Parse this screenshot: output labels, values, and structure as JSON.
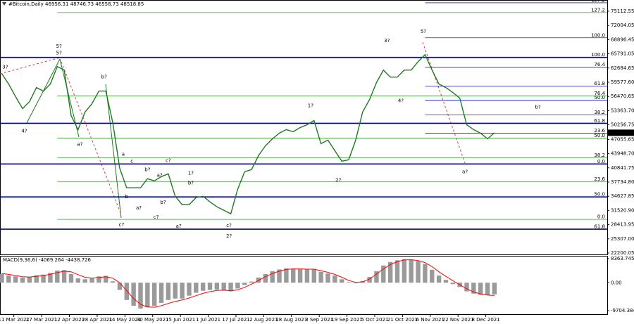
{
  "chart_data": [
    {
      "type": "line",
      "title": "#Bitcoin,Daily  46956.31 48746.73 46558.73 48518.85",
      "color": "#1f7a1f",
      "x": [
        "2021-03-04",
        "2021-03-08",
        "2021-03-12",
        "2021-03-16",
        "2021-03-20",
        "2021-03-24",
        "2021-03-28",
        "2021-04-01",
        "2021-04-05",
        "2021-04-09",
        "2021-04-13",
        "2021-04-17",
        "2021-04-21",
        "2021-04-25",
        "2021-04-29",
        "2021-05-03",
        "2021-05-07",
        "2021-05-11",
        "2021-05-15",
        "2021-05-19",
        "2021-05-23",
        "2021-05-27",
        "2021-05-31",
        "2021-06-04",
        "2021-06-08",
        "2021-06-12",
        "2021-06-16",
        "2021-06-20",
        "2021-06-24",
        "2021-06-28",
        "2021-07-02",
        "2021-07-06",
        "2021-07-10",
        "2021-07-14",
        "2021-07-18",
        "2021-07-22",
        "2021-07-26",
        "2021-07-30",
        "2021-08-03",
        "2021-08-07",
        "2021-08-11",
        "2021-08-15",
        "2021-08-19",
        "2021-08-23",
        "2021-08-27",
        "2021-08-31",
        "2021-09-04",
        "2021-09-08",
        "2021-09-12",
        "2021-09-16",
        "2021-09-20",
        "2021-09-24",
        "2021-09-28",
        "2021-10-02",
        "2021-10-06",
        "2021-10-10",
        "2021-10-14",
        "2021-10-18",
        "2021-10-22",
        "2021-10-26",
        "2021-10-30",
        "2021-11-03",
        "2021-11-07",
        "2021-11-11",
        "2021-11-15",
        "2021-11-19",
        "2021-11-23",
        "2021-11-27",
        "2021-12-01",
        "2021-12-05",
        "2021-12-09",
        "2021-12-13"
      ],
      "values": [
        61470,
        59170,
        56410,
        53800,
        55330,
        58400,
        57640,
        59170,
        63000,
        62240,
        52270,
        49200,
        53030,
        54870,
        57640,
        57640,
        50730,
        40760,
        36470,
        36470,
        36470,
        38460,
        38000,
        38920,
        39530,
        34630,
        32780,
        32780,
        34320,
        34630,
        33400,
        32320,
        31560,
        30790,
        36160,
        39990,
        40450,
        43520,
        45670,
        47200,
        48430,
        49200,
        48740,
        49660,
        50270,
        51190,
        46130,
        46900,
        44600,
        42300,
        42600,
        46900,
        53030,
        55790,
        59480,
        62240,
        60700,
        60700,
        62240,
        62240,
        64080,
        65610,
        62240,
        59170,
        58400,
        57330,
        56100,
        50270,
        49200,
        48430,
        47200,
        48518.85
      ],
      "xlim": [
        "2021-03-03",
        "2022-02-16"
      ],
      "ylim": [
        21740,
        77566
      ],
      "yticks": [
        75112.55,
        72004.05,
        68896.45,
        65791.05,
        62684.65,
        {
          "value": 59577.6,
          "label": "59577.60"
        },
        56470.65,
        {
          "value": 53363.7,
          "label": "53363.70"
        },
        50256.75,
        47055.65,
        {
          "value": 43948.7,
          "label": "43948.70"
        },
        40841.75,
        {
          "value": 37734.8,
          "label": "37734.80"
        },
        34627.85,
        {
          "value": 31520.9,
          "label": "31520.90"
        },
        28413.95,
        {
          "value": 25307,
          "label": "25307.00"
        },
        22200.05
      ],
      "levels": [
        {
          "value": 76964,
          "label": "127.2",
          "color": "#1c1ccc",
          "from": "2021-11-03"
        },
        {
          "value": 74816,
          "label": "127.2",
          "color": "#3c9a3c",
          "from": "2021-04-05"
        },
        {
          "value": 69294,
          "label": "100.0",
          "color": "#1c1ccc",
          "from": "2021-11-03"
        },
        {
          "value": 64999,
          "label": "100.0",
          "color": "#0000b0",
          "from": "2021-03-03"
        },
        {
          "value": 62851,
          "label": "76.4",
          "color": "#1c1ccc",
          "from": "2021-11-03"
        },
        {
          "value": 58709,
          "label": "61.8",
          "color": "#1c1ccc",
          "from": "2021-11-03"
        },
        {
          "value": 56562,
          "label": "76.4",
          "color": "#3c9a3c",
          "from": "2021-04-05"
        },
        {
          "value": 55641,
          "label": "50.0",
          "color": "#1c1ccc",
          "from": "2021-11-03"
        },
        {
          "value": 52420,
          "label": "38.2",
          "color": "#1c1ccc",
          "from": "2021-11-03"
        },
        {
          "value": 50579,
          "label": "61.8",
          "color": "#0000b0",
          "from": "2021-03-03"
        },
        {
          "value": 48431,
          "label": "23.6",
          "color": "#1c1ccc",
          "from": "2021-11-03"
        },
        {
          "value": 47358,
          "label": "50.0",
          "color": "#3c9a3c",
          "from": "2021-04-05"
        },
        {
          "value": 43062,
          "label": "38.2",
          "color": "#3c9a3c",
          "from": "2021-04-05"
        },
        {
          "value": 41682,
          "label": "0.0",
          "color": "#0000b0",
          "from": "2021-03-03"
        },
        {
          "value": 37847,
          "label": "23.6",
          "color": "#3c9a3c",
          "from": "2021-04-05"
        },
        {
          "value": 34472,
          "label": "50.0",
          "color": "#0000b0",
          "from": "2021-03-03"
        },
        {
          "value": 29563,
          "label": "0.0",
          "color": "#3c9a3c",
          "from": "2021-04-05"
        },
        {
          "value": 27416,
          "label": "61.8",
          "color": "#0000b0",
          "from": "2021-03-03"
        }
      ],
      "annotations": [
        {
          "text": "3?",
          "x": "2021-03-06",
          "y": 62850,
          "color": "#2e8b2e"
        },
        {
          "text": "4?",
          "x": "2021-03-17",
          "y": 48890,
          "color": "#2e8b2e"
        },
        {
          "text": "5?",
          "x": "2021-04-06",
          "y": 67450,
          "color": "#0000ff"
        },
        {
          "text": "5?",
          "x": "2021-04-06",
          "y": 65920,
          "color": "#2e8b2e"
        },
        {
          "text": "b?",
          "x": "2021-05-02",
          "y": 60700,
          "color": "#2e8b2e"
        },
        {
          "text": "a?",
          "x": "2021-04-18",
          "y": 45980,
          "color": "#2e8b2e"
        },
        {
          "text": "a",
          "x": "2021-05-13",
          "y": 43830,
          "color": "#2e8b2e"
        },
        {
          "text": "c",
          "x": "2021-05-18",
          "y": 42300,
          "color": "#2e8b2e"
        },
        {
          "text": "b?",
          "x": "2021-05-27",
          "y": 40450,
          "color": "#2e8b2e"
        },
        {
          "text": "a?",
          "x": "2021-06-03",
          "y": 39230,
          "color": "#2e8b2e"
        },
        {
          "text": "c?",
          "x": "2021-06-08",
          "y": 42450,
          "color": "#2e8b2e"
        },
        {
          "text": "b",
          "x": "2021-05-15",
          "y": 34470,
          "color": "#2e8b2e"
        },
        {
          "text": "a?",
          "x": "2021-05-22",
          "y": 32020,
          "color": "#2e8b2e"
        },
        {
          "text": "b?",
          "x": "2021-06-05",
          "y": 33240,
          "color": "#2e8b2e"
        },
        {
          "text": "c?",
          "x": "2021-05-12",
          "y": 28340,
          "color": "#2e8b2e"
        },
        {
          "text": "c?",
          "x": "2021-06-01",
          "y": 30020,
          "color": "#2e8b2e"
        },
        {
          "text": "a?",
          "x": "2021-06-14",
          "y": 28030,
          "color": "#2e8b2e"
        },
        {
          "text": "1?",
          "x": "2021-06-21",
          "y": 39690,
          "color": "#2e8b2e"
        },
        {
          "text": "b?",
          "x": "2021-06-21",
          "y": 37540,
          "color": "#2e8b2e"
        },
        {
          "text": "c?",
          "x": "2021-07-13",
          "y": 28180,
          "color": "#2e8b2e"
        },
        {
          "text": "2?",
          "x": "2021-07-13",
          "y": 25880,
          "color": "#2e8b2e"
        },
        {
          "text": "1?",
          "x": "2021-08-29",
          "y": 54410,
          "color": "#2e8b2e"
        },
        {
          "text": "2?",
          "x": "2021-09-14",
          "y": 38150,
          "color": "#2e8b2e"
        },
        {
          "text": "3?",
          "x": "2021-10-12",
          "y": 68680,
          "color": "#2e8b2e"
        },
        {
          "text": "4?",
          "x": "2021-10-20",
          "y": 55490,
          "color": "#2e8b2e"
        },
        {
          "text": "5?",
          "x": "2021-11-02",
          "y": 70670,
          "color": "#2e8b2e"
        },
        {
          "text": "a?",
          "x": "2021-11-26",
          "y": 40000,
          "color": "#2e8b2e"
        },
        {
          "text": "b?",
          "x": "2022-01-07",
          "y": 54110,
          "color": "#2e8b2e"
        }
      ]
    },
    {
      "type": "macd",
      "title": "MACD(9,36,6) -4069.264 -4438.726",
      "color": "#9a9a9a",
      "signal_color": "#ff0000",
      "x": [
        "2021-03-04",
        "2021-03-08",
        "2021-03-12",
        "2021-03-16",
        "2021-03-20",
        "2021-03-24",
        "2021-03-28",
        "2021-04-01",
        "2021-04-05",
        "2021-04-09",
        "2021-04-13",
        "2021-04-17",
        "2021-04-21",
        "2021-04-25",
        "2021-04-29",
        "2021-05-03",
        "2021-05-07",
        "2021-05-11",
        "2021-05-15",
        "2021-05-19",
        "2021-05-23",
        "2021-05-27",
        "2021-05-31",
        "2021-06-04",
        "2021-06-08",
        "2021-06-12",
        "2021-06-16",
        "2021-06-20",
        "2021-06-24",
        "2021-06-28",
        "2021-07-02",
        "2021-07-06",
        "2021-07-10",
        "2021-07-14",
        "2021-07-18",
        "2021-07-22",
        "2021-07-26",
        "2021-07-30",
        "2021-08-03",
        "2021-08-07",
        "2021-08-11",
        "2021-08-15",
        "2021-08-19",
        "2021-08-23",
        "2021-08-27",
        "2021-08-31",
        "2021-09-04",
        "2021-09-08",
        "2021-09-12",
        "2021-09-16",
        "2021-09-20",
        "2021-09-24",
        "2021-09-28",
        "2021-10-02",
        "2021-10-06",
        "2021-10-10",
        "2021-10-14",
        "2021-10-18",
        "2021-10-22",
        "2021-10-26",
        "2021-10-30",
        "2021-11-03",
        "2021-11-07",
        "2021-11-11",
        "2021-11-15",
        "2021-11-19",
        "2021-11-23",
        "2021-11-27",
        "2021-12-01",
        "2021-12-05",
        "2021-12-09",
        "2021-12-13"
      ],
      "histogram": [
        3000,
        2500,
        2200,
        1800,
        2000,
        2600,
        2800,
        3400,
        4200,
        4400,
        3000,
        1500,
        1200,
        1500,
        2200,
        2400,
        500,
        -2500,
        -6000,
        -8000,
        -9000,
        -8500,
        -8000,
        -7000,
        -6000,
        -5500,
        -5500,
        -4500,
        -3500,
        -2800,
        -2500,
        -2400,
        -2600,
        -3000,
        -2000,
        -800,
        400,
        1800,
        3000,
        4000,
        4600,
        5000,
        4900,
        4700,
        4700,
        4600,
        3800,
        3200,
        2500,
        1200,
        200,
        -200,
        600,
        2000,
        4000,
        6000,
        7200,
        7800,
        8200,
        8000,
        7500,
        6500,
        4500,
        2500,
        1000,
        -500,
        -1500,
        -3000,
        -3800,
        -4200,
        -4300,
        -4069.264
      ],
      "signal": [
        3200,
        2900,
        2500,
        2100,
        2000,
        2200,
        2500,
        2900,
        3500,
        4000,
        3800,
        2800,
        1900,
        1600,
        1800,
        2100,
        1600,
        0,
        -2800,
        -5500,
        -7500,
        -8400,
        -8500,
        -8000,
        -7200,
        -6500,
        -6000,
        -5300,
        -4500,
        -3700,
        -3100,
        -2700,
        -2600,
        -2800,
        -2500,
        -1600,
        -500,
        800,
        2100,
        3200,
        4000,
        4600,
        4800,
        4800,
        4700,
        4700,
        4200,
        3600,
        2900,
        1900,
        800,
        100,
        300,
        1300,
        3000,
        4800,
        6300,
        7300,
        7900,
        8000,
        7700,
        7000,
        5600,
        3800,
        2200,
        700,
        -700,
        -2100,
        -3200,
        -3900,
        -4300,
        -4438.726
      ],
      "xlim": [
        "2021-03-03",
        "2022-02-16"
      ],
      "ylim": [
        -10924,
        9095
      ],
      "yticks": [
        8363.745,
        {
          "value": 0,
          "label": "0.00"
        },
        -9704.384
      ],
      "xticks": [
        {
          "value": "2021-03-11",
          "label": "11 Mar 2021"
        },
        {
          "value": "2021-03-27",
          "label": "27 Mar 2021"
        },
        {
          "value": "2021-04-12",
          "label": "12 Apr 2021"
        },
        {
          "value": "2021-04-28",
          "label": "28 Apr 2021"
        },
        {
          "value": "2021-05-14",
          "label": "14 May 2021"
        },
        {
          "value": "2021-05-30",
          "label": "30 May 2021"
        },
        {
          "value": "2021-06-15",
          "label": "15 Jun 2021"
        },
        {
          "value": "2021-07-01",
          "label": "1 Jul 2021"
        },
        {
          "value": "2021-07-17",
          "label": "17 Jul 2021"
        },
        {
          "value": "2021-08-02",
          "label": "2 Aug 2021"
        },
        {
          "value": "2021-08-18",
          "label": "18 Aug 2021"
        },
        {
          "value": "2021-09-03",
          "label": "3 Sep 2021"
        },
        {
          "value": "2021-09-19",
          "label": "19 Sep 2021"
        },
        {
          "value": "2021-10-05",
          "label": "5 Oct 2021"
        },
        {
          "value": "2021-10-21",
          "label": "21 Oct 2021"
        },
        {
          "value": "2021-11-06",
          "label": "6 Nov 2021"
        },
        {
          "value": "2021-11-22",
          "label": "22 Nov 2021"
        },
        {
          "value": "2021-12-08",
          "label": "8 Dec 2021"
        }
      ]
    }
  ]
}
